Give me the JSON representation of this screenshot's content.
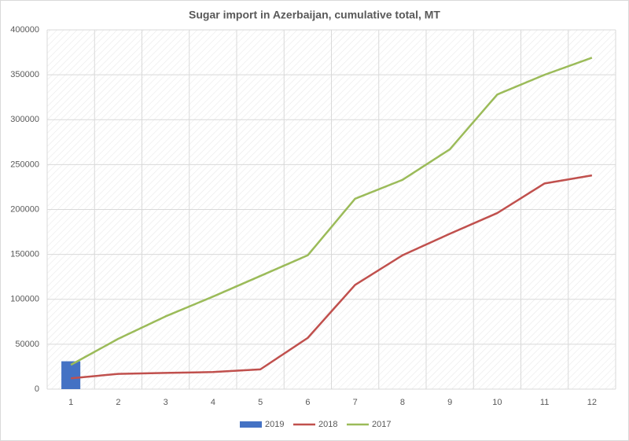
{
  "chart_data": {
    "type": "combo",
    "title": "Sugar import in Azerbaijan, cumulative total, MT",
    "categories": [
      "1",
      "2",
      "3",
      "4",
      "5",
      "6",
      "7",
      "8",
      "9",
      "10",
      "11",
      "12"
    ],
    "series": [
      {
        "name": "2019",
        "type": "bar",
        "color": "#4472c4",
        "values": [
          31000,
          null,
          null,
          null,
          null,
          null,
          null,
          null,
          null,
          null,
          null,
          null
        ]
      },
      {
        "name": "2018",
        "type": "line",
        "color": "#c0504d",
        "values": [
          12000,
          17000,
          18000,
          19000,
          22000,
          57000,
          116000,
          149000,
          173000,
          196000,
          229000,
          238000
        ]
      },
      {
        "name": "2017",
        "type": "line",
        "color": "#9bbb59",
        "values": [
          27000,
          56000,
          81000,
          103000,
          126000,
          149000,
          212000,
          233000,
          267000,
          328000,
          350000,
          369000
        ]
      }
    ],
    "ylim": [
      0,
      400000
    ],
    "yticks": [
      0,
      50000,
      100000,
      150000,
      200000,
      250000,
      300000,
      350000,
      400000
    ],
    "grid": true,
    "legend": "bottom"
  }
}
